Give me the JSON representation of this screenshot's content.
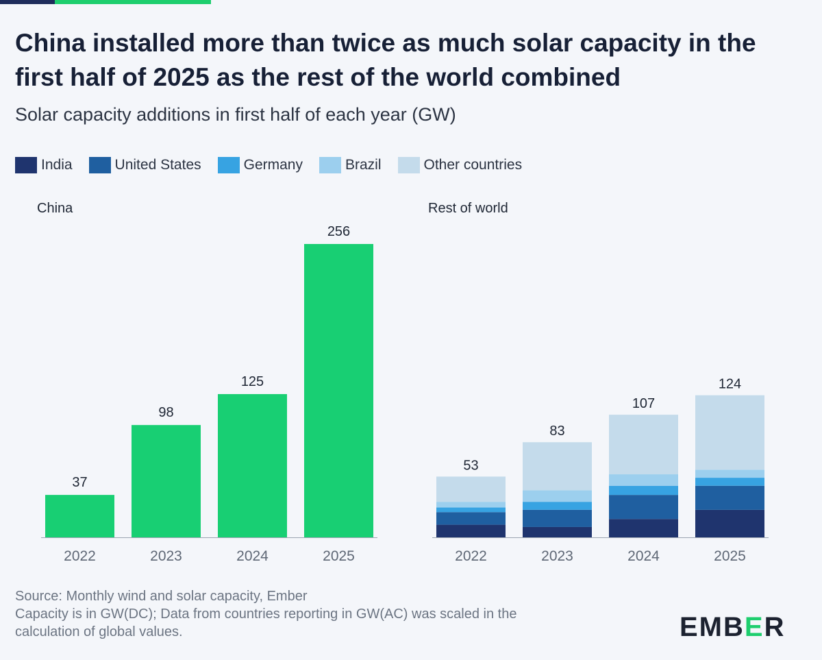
{
  "title": "China installed more than twice as much solar capacity in the first half of 2025 as the rest of the world combined",
  "subtitle": "Solar capacity additions in first half of each year (GW)",
  "legend": [
    {
      "label": "India",
      "color": "#1f346e"
    },
    {
      "label": "United States",
      "color": "#1f5fa0"
    },
    {
      "label": "Germany",
      "color": "#37a3e2"
    },
    {
      "label": "Brazil",
      "color": "#9ccfee"
    },
    {
      "label": "Other countries",
      "color": "#c4dbeb"
    }
  ],
  "china_color": "#18cf73",
  "chart_data": [
    {
      "type": "bar",
      "title": "China",
      "categories": [
        "2022",
        "2023",
        "2024",
        "2025"
      ],
      "values": [
        37,
        98,
        125,
        256
      ],
      "data_labels": [
        "37",
        "98",
        "125",
        "256"
      ],
      "ylim": [
        0,
        256
      ]
    },
    {
      "type": "bar",
      "stacked": true,
      "title": "Rest of world",
      "categories": [
        "2022",
        "2023",
        "2024",
        "2025"
      ],
      "series": [
        {
          "name": "India",
          "values": [
            11,
            9,
            16,
            24
          ]
        },
        {
          "name": "United States",
          "values": [
            11,
            15,
            21,
            21
          ]
        },
        {
          "name": "Germany",
          "values": [
            4,
            7,
            8,
            7
          ]
        },
        {
          "name": "Brazil",
          "values": [
            5,
            10,
            10,
            7
          ]
        },
        {
          "name": "Other countries",
          "values": [
            22,
            42,
            52,
            65
          ]
        }
      ],
      "totals": [
        53,
        83,
        107,
        124
      ],
      "data_labels": [
        "53",
        "83",
        "107",
        "124"
      ],
      "ylim": [
        0,
        256
      ]
    }
  ],
  "footer": {
    "source": "Source: Monthly wind and solar capacity, Ember",
    "note_line1": "Capacity is in GW(DC); Data from countries reporting in GW(AC) was scaled in the",
    "note_line2": "calculation of global values."
  },
  "logo": {
    "prefix": "EMB",
    "accent": "E",
    "suffix": "R"
  }
}
